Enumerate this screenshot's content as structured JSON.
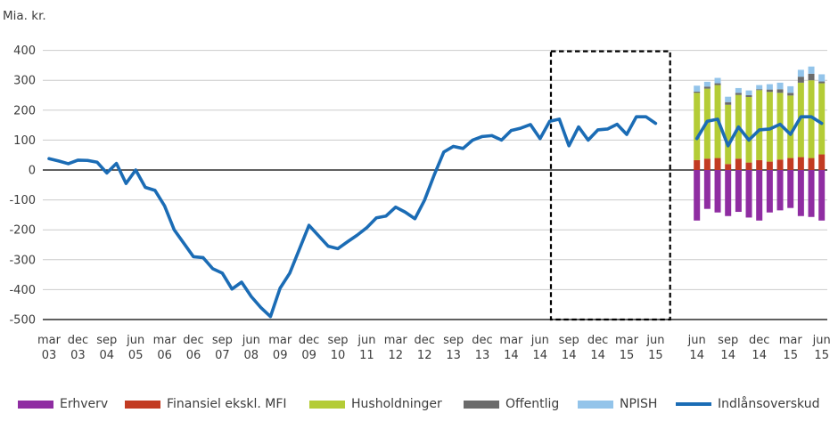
{
  "y_axis_title": "Mia. kr.",
  "colors": {
    "erhverv": "#8f2da2",
    "finansiel": "#c23b22",
    "husholdninger": "#b4cc36",
    "offentlig": "#6b6b6b",
    "npish": "#93c4ea",
    "indlaansoverskud": "#1b6cb5",
    "grid": "#cccccc",
    "axis": "#000000",
    "text": "#3c3c3c"
  },
  "legend": [
    {
      "label": "Erhverv",
      "color_key": "erhverv",
      "swatch": "box"
    },
    {
      "label": "Finansiel ekskl. MFI",
      "color_key": "finansiel",
      "swatch": "box"
    },
    {
      "label": "Husholdninger",
      "color_key": "husholdninger",
      "swatch": "box"
    },
    {
      "label": "Offentlig",
      "color_key": "offentlig",
      "swatch": "box"
    },
    {
      "label": "NPISH",
      "color_key": "npish",
      "swatch": "box"
    },
    {
      "label": "Indlånsoverskud",
      "color_key": "indlaansoverskud",
      "swatch": "line"
    }
  ],
  "chart_data": [
    {
      "type": "line",
      "name": "historical-line-section",
      "ylabel": "Mia. kr.",
      "ylim": [
        -500,
        400
      ],
      "y_ticks": [
        400,
        300,
        200,
        100,
        0,
        -100,
        -200,
        -300,
        -400,
        -500
      ],
      "grid": true,
      "x_tick_labels": [
        "mar 03",
        "dec 03",
        "sep 04",
        "jun 05",
        "mar 06",
        "dec 06",
        "sep 07",
        "jun 08",
        "mar 09",
        "dec 09",
        "sep 10",
        "jun 11",
        "mar 12",
        "dec 12",
        "sep 13",
        "dec 13",
        "mar 14",
        "jun 14",
        "sep 14",
        "dec 14",
        "mar 15",
        "jun 15"
      ],
      "label_every_n_points": 3,
      "series": [
        {
          "name": "Indlånsoverskud",
          "values": [
            38,
            30,
            21,
            33,
            32,
            26,
            -10,
            22,
            -45,
            0,
            -58,
            -68,
            -120,
            -200,
            -245,
            -290,
            -293,
            -330,
            -345,
            -398,
            -375,
            -423,
            -460,
            -490,
            -395,
            -345,
            -265,
            -185,
            -220,
            -255,
            -263,
            -240,
            -218,
            -193,
            -160,
            -154,
            -124,
            -141,
            -163,
            -101,
            -17,
            60,
            79,
            72,
            100,
            112,
            115,
            100,
            132,
            140,
            152,
            105,
            163,
            170,
            81,
            144,
            100,
            134,
            137,
            153,
            119,
            178,
            178,
            156
          ]
        }
      ],
      "annotation_box": {
        "style": "dashed",
        "covers": "jun 14 - jun 15"
      }
    },
    {
      "type": "bar",
      "name": "monthly-bar-section",
      "stacked": true,
      "ylim": [
        -500,
        400
      ],
      "categories": [
        "jun 14",
        "jul 14",
        "aug 14",
        "sep 14",
        "okt 14",
        "nov 14",
        "dec 14",
        "jan 15",
        "feb 15",
        "mar 15",
        "apr 15",
        "maj 15",
        "jun 15"
      ],
      "x_tick_labels": [
        "jun 14",
        "sep 14",
        "dec 14",
        "mar 15",
        "jun 15"
      ],
      "label_every_n_bars": 3,
      "series": [
        {
          "name": "Erhverv",
          "color_key": "erhverv",
          "values": [
            -169,
            -130,
            -142,
            -154,
            -140,
            -159,
            -169,
            -142,
            -135,
            -127,
            -154,
            -157,
            -169
          ]
        },
        {
          "name": "Finansiel ekskl. MFI",
          "color_key": "finansiel",
          "values": [
            33,
            38,
            40,
            20,
            38,
            25,
            33,
            28,
            35,
            40,
            43,
            40,
            52
          ]
        },
        {
          "name": "Husholdninger",
          "color_key": "husholdninger",
          "values": [
            225,
            234,
            244,
            198,
            213,
            219,
            234,
            233,
            223,
            209,
            249,
            260,
            238
          ]
        },
        {
          "name": "Offentlig",
          "color_key": "offentlig",
          "values": [
            4,
            7,
            6,
            9,
            7,
            6,
            3,
            8,
            12,
            9,
            20,
            22,
            6
          ]
        },
        {
          "name": "NPISH",
          "color_key": "npish",
          "values": [
            20,
            16,
            18,
            18,
            16,
            16,
            14,
            18,
            22,
            22,
            23,
            24,
            24
          ]
        },
        {
          "name": "Indlånsoverskud",
          "color_key": "indlaansoverskud",
          "type": "line",
          "values": [
            105,
            163,
            170,
            81,
            144,
            100,
            134,
            137,
            153,
            119,
            178,
            178,
            156
          ]
        }
      ]
    }
  ]
}
